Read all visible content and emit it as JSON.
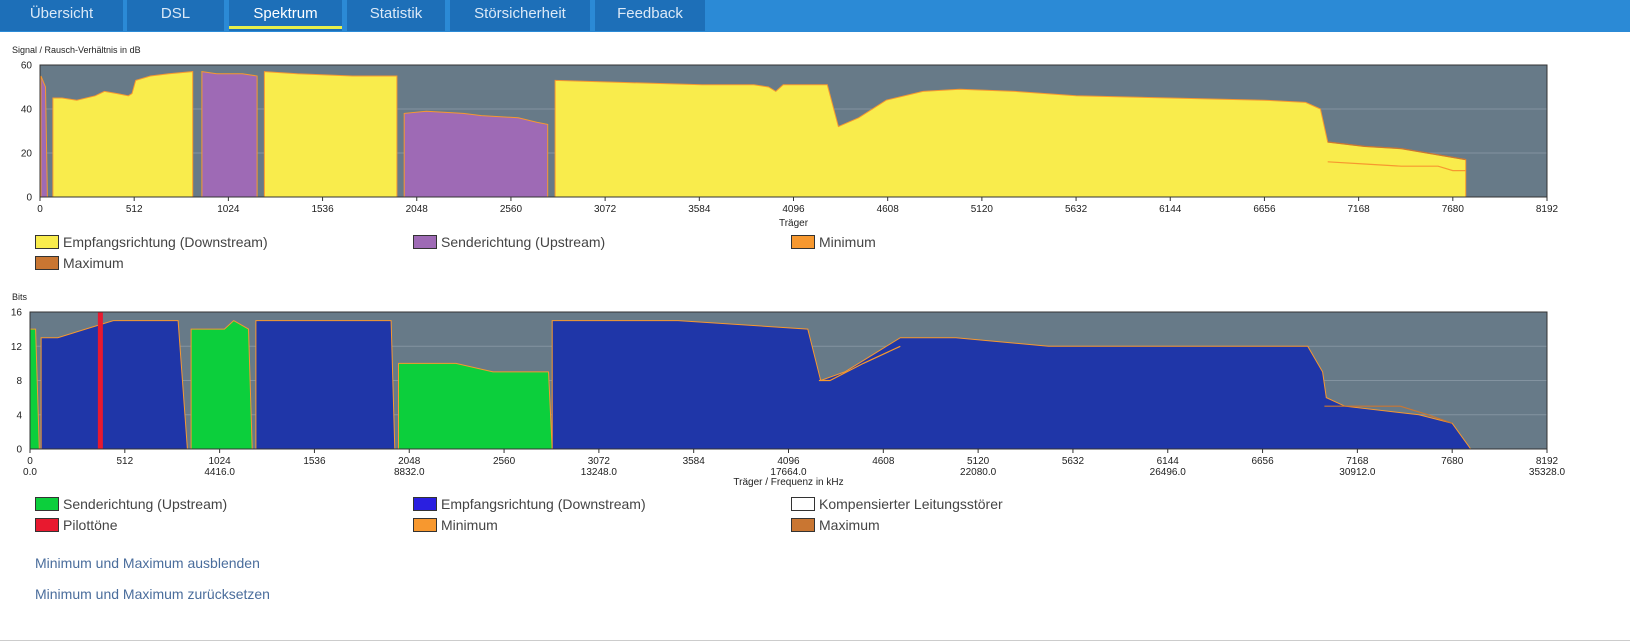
{
  "tabs": [
    {
      "label": "Übersicht",
      "active": false
    },
    {
      "label": "DSL",
      "active": false
    },
    {
      "label": "Spektrum",
      "active": true
    },
    {
      "label": "Statistik",
      "active": false
    },
    {
      "label": "Störsicherheit",
      "active": false
    },
    {
      "label": "Feedback",
      "active": false
    }
  ],
  "colors": {
    "topbar": "#2b8ad6",
    "tab": "#1d6fb8",
    "active_underline": "#e6ef4a",
    "plot_bg": "#677a88",
    "downstream_snr": "#f9ec4c",
    "upstream_snr": "#9e6ab5",
    "minimum": "#f7982f",
    "maximum": "#c97632",
    "upstream_bits": "#0ccf3c",
    "downstream_bits": "#1f36a8",
    "pilot": "#e8192f",
    "compensated": "#ffffff"
  },
  "chart_data": [
    {
      "type": "area",
      "ylabel": "Signal / Rausch-Verhältnis in dB",
      "xlabel": "Träger",
      "xlim": [
        0,
        8192
      ],
      "ylim": [
        0,
        60
      ],
      "yticks": [
        "0",
        "20",
        "40",
        "60"
      ],
      "xticks": [
        "0",
        "512",
        "1024",
        "1536",
        "2048",
        "2560",
        "3072",
        "3584",
        "4096",
        "4608",
        "5120",
        "5632",
        "6144",
        "6656",
        "7168",
        "7680",
        "8192"
      ],
      "series": [
        {
          "name": "Empfangsrichtung (Downstream)",
          "segments": [
            [
              [
                70,
                0
              ],
              [
                70,
                45
              ],
              [
                120,
                45
              ],
              [
                200,
                44
              ],
              [
                300,
                46
              ],
              [
                350,
                48
              ],
              [
                420,
                47
              ],
              [
                480,
                46
              ],
              [
                500,
                47
              ],
              [
                520,
                53
              ],
              [
                600,
                55
              ],
              [
                700,
                56
              ],
              [
                830,
                57
              ],
              [
                830,
                0
              ]
            ],
            [
              [
                1220,
                0
              ],
              [
                1220,
                57
              ],
              [
                1400,
                56
              ],
              [
                1700,
                55
              ],
              [
                1940,
                55
              ],
              [
                1940,
                0
              ]
            ],
            [
              [
                2800,
                0
              ],
              [
                2800,
                53
              ],
              [
                3200,
                52
              ],
              [
                3600,
                51
              ],
              [
                3880,
                51
              ],
              [
                3960,
                50
              ],
              [
                4000,
                48
              ],
              [
                4040,
                51
              ],
              [
                4250,
                51
              ],
              [
                4280,
                51
              ],
              [
                4340,
                32
              ],
              [
                4450,
                36
              ],
              [
                4600,
                44
              ],
              [
                4800,
                48
              ],
              [
                5000,
                49
              ],
              [
                5300,
                48
              ],
              [
                5632,
                46
              ],
              [
                6144,
                45
              ],
              [
                6656,
                44
              ],
              [
                6880,
                43
              ],
              [
                6960,
                40
              ],
              [
                7000,
                25
              ],
              [
                7200,
                23
              ],
              [
                7400,
                22
              ],
              [
                7540,
                20
              ],
              [
                7680,
                18
              ],
              [
                7750,
                17
              ],
              [
                7750,
                0
              ]
            ]
          ]
        },
        {
          "name": "Senderichtung (Upstream)",
          "segments": [
            [
              [
                5,
                0
              ],
              [
                5,
                55
              ],
              [
                30,
                50
              ],
              [
                40,
                0
              ]
            ],
            [
              [
                880,
                0
              ],
              [
                880,
                57
              ],
              [
                960,
                56
              ],
              [
                1100,
                56
              ],
              [
                1180,
                55
              ],
              [
                1180,
                0
              ]
            ],
            [
              [
                1980,
                0
              ],
              [
                1980,
                38
              ],
              [
                2100,
                39
              ],
              [
                2300,
                38
              ],
              [
                2400,
                37
              ],
              [
                2600,
                36
              ],
              [
                2700,
                34
              ],
              [
                2760,
                33
              ],
              [
                2760,
                0
              ]
            ]
          ]
        },
        {
          "name": "Minimum",
          "points": [
            [
              7000,
              16
            ],
            [
              7200,
              15
            ],
            [
              7400,
              14
            ],
            [
              7540,
              14
            ],
            [
              7600,
              14
            ],
            [
              7680,
              12
            ],
            [
              7750,
              12
            ]
          ]
        },
        {
          "name": "Maximum",
          "points": [
            [
              7000,
              25
            ],
            [
              7200,
              23
            ],
            [
              7400,
              22
            ],
            [
              7540,
              20
            ],
            [
              7680,
              18
            ],
            [
              7750,
              17
            ]
          ]
        }
      ],
      "legend": [
        "Empfangsrichtung (Downstream)",
        "Senderichtung (Upstream)",
        "Minimum",
        "Maximum"
      ]
    },
    {
      "type": "area",
      "ylabel": "Bits",
      "xlabel": "Träger / Frequenz in kHz",
      "xlim": [
        0,
        8192
      ],
      "ylim": [
        0,
        16
      ],
      "yticks": [
        "0",
        "4",
        "8",
        "12",
        "16"
      ],
      "xticks": [
        "0",
        "512",
        "1024",
        "1536",
        "2048",
        "2560",
        "3072",
        "3584",
        "4096",
        "4608",
        "5120",
        "5632",
        "6144",
        "6656",
        "7168",
        "7680",
        "8192"
      ],
      "freq_ticks": [
        {
          "carrier": 0,
          "label": "0.0"
        },
        {
          "carrier": 1024,
          "label": "4416.0"
        },
        {
          "carrier": 2048,
          "label": "8832.0"
        },
        {
          "carrier": 3072,
          "label": "13248.0"
        },
        {
          "carrier": 4096,
          "label": "17664.0"
        },
        {
          "carrier": 5120,
          "label": "22080.0"
        },
        {
          "carrier": 6144,
          "label": "26496.0"
        },
        {
          "carrier": 7168,
          "label": "30912.0"
        },
        {
          "carrier": 8192,
          "label": "35328.0"
        }
      ],
      "pilot_carrier": 380,
      "series": [
        {
          "name": "Senderichtung (Upstream)",
          "segments": [
            [
              [
                0,
                0
              ],
              [
                0,
                14
              ],
              [
                30,
                14
              ],
              [
                50,
                0
              ]
            ],
            [
              [
                870,
                0
              ],
              [
                870,
                14
              ],
              [
                1050,
                14
              ],
              [
                1100,
                15
              ],
              [
                1180,
                14
              ],
              [
                1200,
                0
              ]
            ],
            [
              [
                1990,
                0
              ],
              [
                1990,
                10
              ],
              [
                2300,
                10
              ],
              [
                2500,
                9
              ],
              [
                2800,
                9
              ],
              [
                2820,
                0
              ]
            ]
          ]
        },
        {
          "name": "Empfangsrichtung (Downstream)",
          "segments": [
            [
              [
                60,
                0
              ],
              [
                60,
                13
              ],
              [
                150,
                13
              ],
              [
                300,
                14
              ],
              [
                450,
                15
              ],
              [
                800,
                15
              ],
              [
                850,
                0
              ]
            ],
            [
              [
                1220,
                0
              ],
              [
                1220,
                15
              ],
              [
                1950,
                15
              ],
              [
                1970,
                0
              ]
            ],
            [
              [
                2820,
                0
              ],
              [
                2820,
                15
              ],
              [
                3500,
                15
              ],
              [
                4200,
                14
              ],
              [
                4270,
                8
              ],
              [
                4400,
                9
              ],
              [
                4550,
                11
              ],
              [
                4700,
                13
              ],
              [
                5000,
                13
              ],
              [
                5500,
                12
              ],
              [
                6144,
                12
              ],
              [
                6900,
                12
              ],
              [
                6980,
                9
              ],
              [
                7000,
                6
              ],
              [
                7100,
                5
              ],
              [
                7500,
                4
              ],
              [
                7680,
                3
              ],
              [
                7780,
                0
              ]
            ]
          ]
        },
        {
          "name": "Minimum",
          "points": [
            [
              4260,
              8
            ],
            [
              4320,
              8
            ],
            [
              4500,
              10
            ],
            [
              4700,
              12
            ]
          ]
        },
        {
          "name": "Maximum",
          "points": [
            [
              6990,
              5
            ],
            [
              7200,
              5
            ],
            [
              7400,
              5
            ],
            [
              7550,
              4
            ],
            [
              7680,
              3
            ]
          ]
        }
      ],
      "legend": [
        "Senderichtung (Upstream)",
        "Empfangsrichtung (Downstream)",
        "Kompensierter Leitungsstörer",
        "Pilottöne",
        "Minimum",
        "Maximum"
      ]
    }
  ],
  "links": {
    "hide_minmax": "Minimum und Maximum ausblenden",
    "reset_minmax": "Minimum und Maximum zurücksetzen"
  }
}
